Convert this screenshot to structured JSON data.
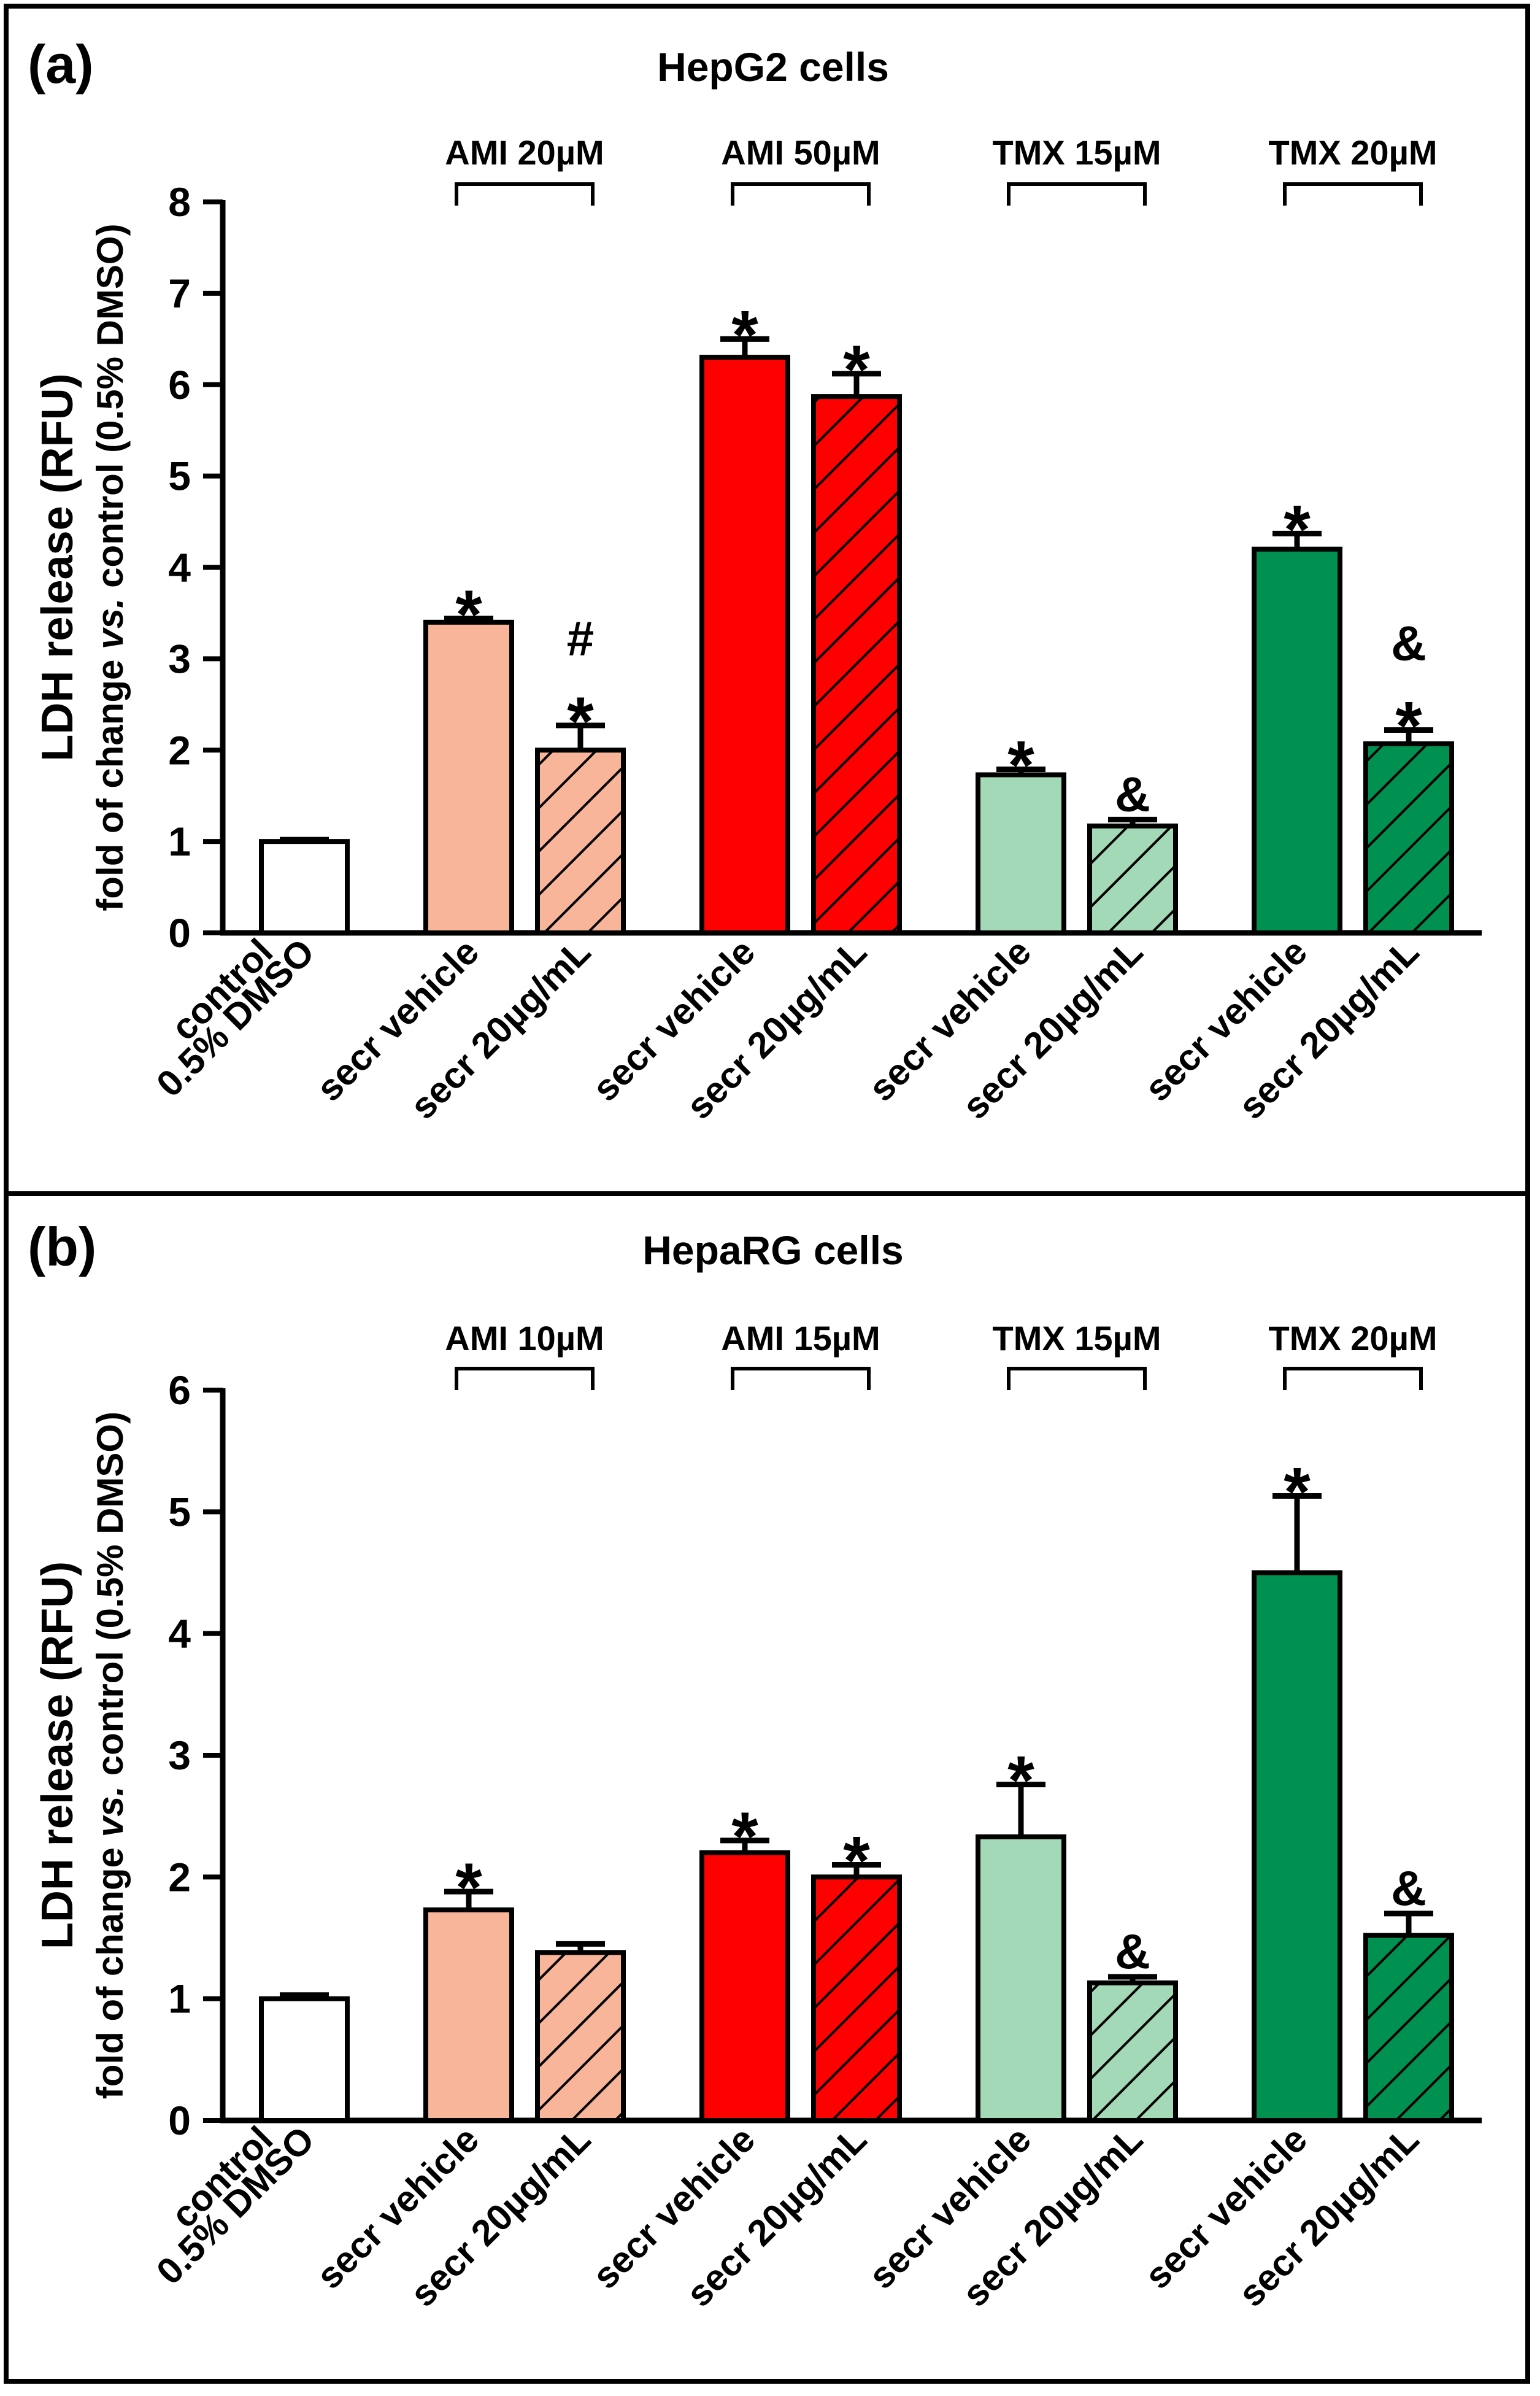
{
  "chart_data": [
    {
      "type": "bar",
      "panel_label": "(a)",
      "title": "HepG2 cells",
      "ylabel_line1": "LDH release (RFU)",
      "ylabel_line2": [
        "fold of change ",
        "vs.",
        " control (0.5% DMSO)"
      ],
      "ylim": [
        0,
        8
      ],
      "yticks": [
        "0",
        "1",
        "2",
        "3",
        "4",
        "5",
        "6",
        "7",
        "8"
      ],
      "categories": [
        [
          "control",
          "0.5% DMSO"
        ],
        [
          "secr vehicle"
        ],
        [
          "secr 20µg/mL"
        ],
        [
          "secr vehicle"
        ],
        [
          "secr 20µg/mL"
        ],
        [
          "secr vehicle"
        ],
        [
          "secr 20µg/mL"
        ],
        [
          "secr vehicle"
        ],
        [
          "secr 20µg/mL"
        ]
      ],
      "groups": [
        {
          "label": "AMI 20µM",
          "bars": [
            1,
            2
          ]
        },
        {
          "label": "AMI 50µM",
          "bars": [
            3,
            4
          ]
        },
        {
          "label": "TMX 15µM",
          "bars": [
            5,
            6
          ]
        },
        {
          "label": "TMX 20µM",
          "bars": [
            7,
            8
          ]
        }
      ],
      "values": [
        1.0,
        3.4,
        2.0,
        6.3,
        5.87,
        1.73,
        1.17,
        4.2,
        2.07
      ],
      "errors": [
        0.02,
        0.04,
        0.27,
        0.2,
        0.25,
        0.06,
        0.07,
        0.17,
        0.15
      ],
      "colors": [
        "#ffffff",
        "#f9b59a",
        "#f9b59a",
        "#ff0000",
        "#ff0000",
        "#a3d9b6",
        "#a3d9b6",
        "#009150",
        "#009150"
      ],
      "hatched": [
        false,
        false,
        true,
        false,
        true,
        false,
        true,
        false,
        true
      ],
      "annotations": [
        [],
        [
          "*"
        ],
        [
          "#",
          "*"
        ],
        [
          "*"
        ],
        [
          "*"
        ],
        [
          "*"
        ],
        [
          "&"
        ],
        [
          "*"
        ],
        [
          "&",
          "*"
        ]
      ]
    },
    {
      "type": "bar",
      "panel_label": "(b)",
      "title": "HepaRG cells",
      "ylabel_line1": "LDH release (RFU)",
      "ylabel_line2": [
        "fold of change ",
        "vs.",
        " control (0.5% DMSO)"
      ],
      "ylim": [
        0,
        6
      ],
      "yticks": [
        "0",
        "1",
        "2",
        "3",
        "4",
        "5",
        "6"
      ],
      "categories": [
        [
          "control",
          "0.5% DMSO"
        ],
        [
          "secr vehicle"
        ],
        [
          "secr 20µg/mL"
        ],
        [
          "secr vehicle"
        ],
        [
          "secr 20µg/mL"
        ],
        [
          "secr vehicle"
        ],
        [
          "secr 20µg/mL"
        ],
        [
          "secr vehicle"
        ],
        [
          "secr 20µg/mL"
        ]
      ],
      "groups": [
        {
          "label": "AMI 10µM",
          "bars": [
            1,
            2
          ]
        },
        {
          "label": "AMI 15µM",
          "bars": [
            3,
            4
          ]
        },
        {
          "label": "TMX 15µM",
          "bars": [
            5,
            6
          ]
        },
        {
          "label": "TMX 20µM",
          "bars": [
            7,
            8
          ]
        }
      ],
      "values": [
        1.0,
        1.73,
        1.38,
        2.2,
        2.0,
        2.33,
        1.13,
        4.5,
        1.52
      ],
      "errors": [
        0.03,
        0.15,
        0.07,
        0.1,
        0.1,
        0.43,
        0.05,
        0.63,
        0.18
      ],
      "colors": [
        "#ffffff",
        "#f9b59a",
        "#f9b59a",
        "#ff0000",
        "#ff0000",
        "#a3d9b6",
        "#a3d9b6",
        "#009150",
        "#009150"
      ],
      "hatched": [
        false,
        false,
        true,
        false,
        true,
        false,
        true,
        false,
        true
      ],
      "annotations": [
        [],
        [
          "*"
        ],
        [],
        [
          "*"
        ],
        [
          "*"
        ],
        [
          "*"
        ],
        [
          "&"
        ],
        [
          "*"
        ],
        [
          "&"
        ]
      ]
    }
  ]
}
